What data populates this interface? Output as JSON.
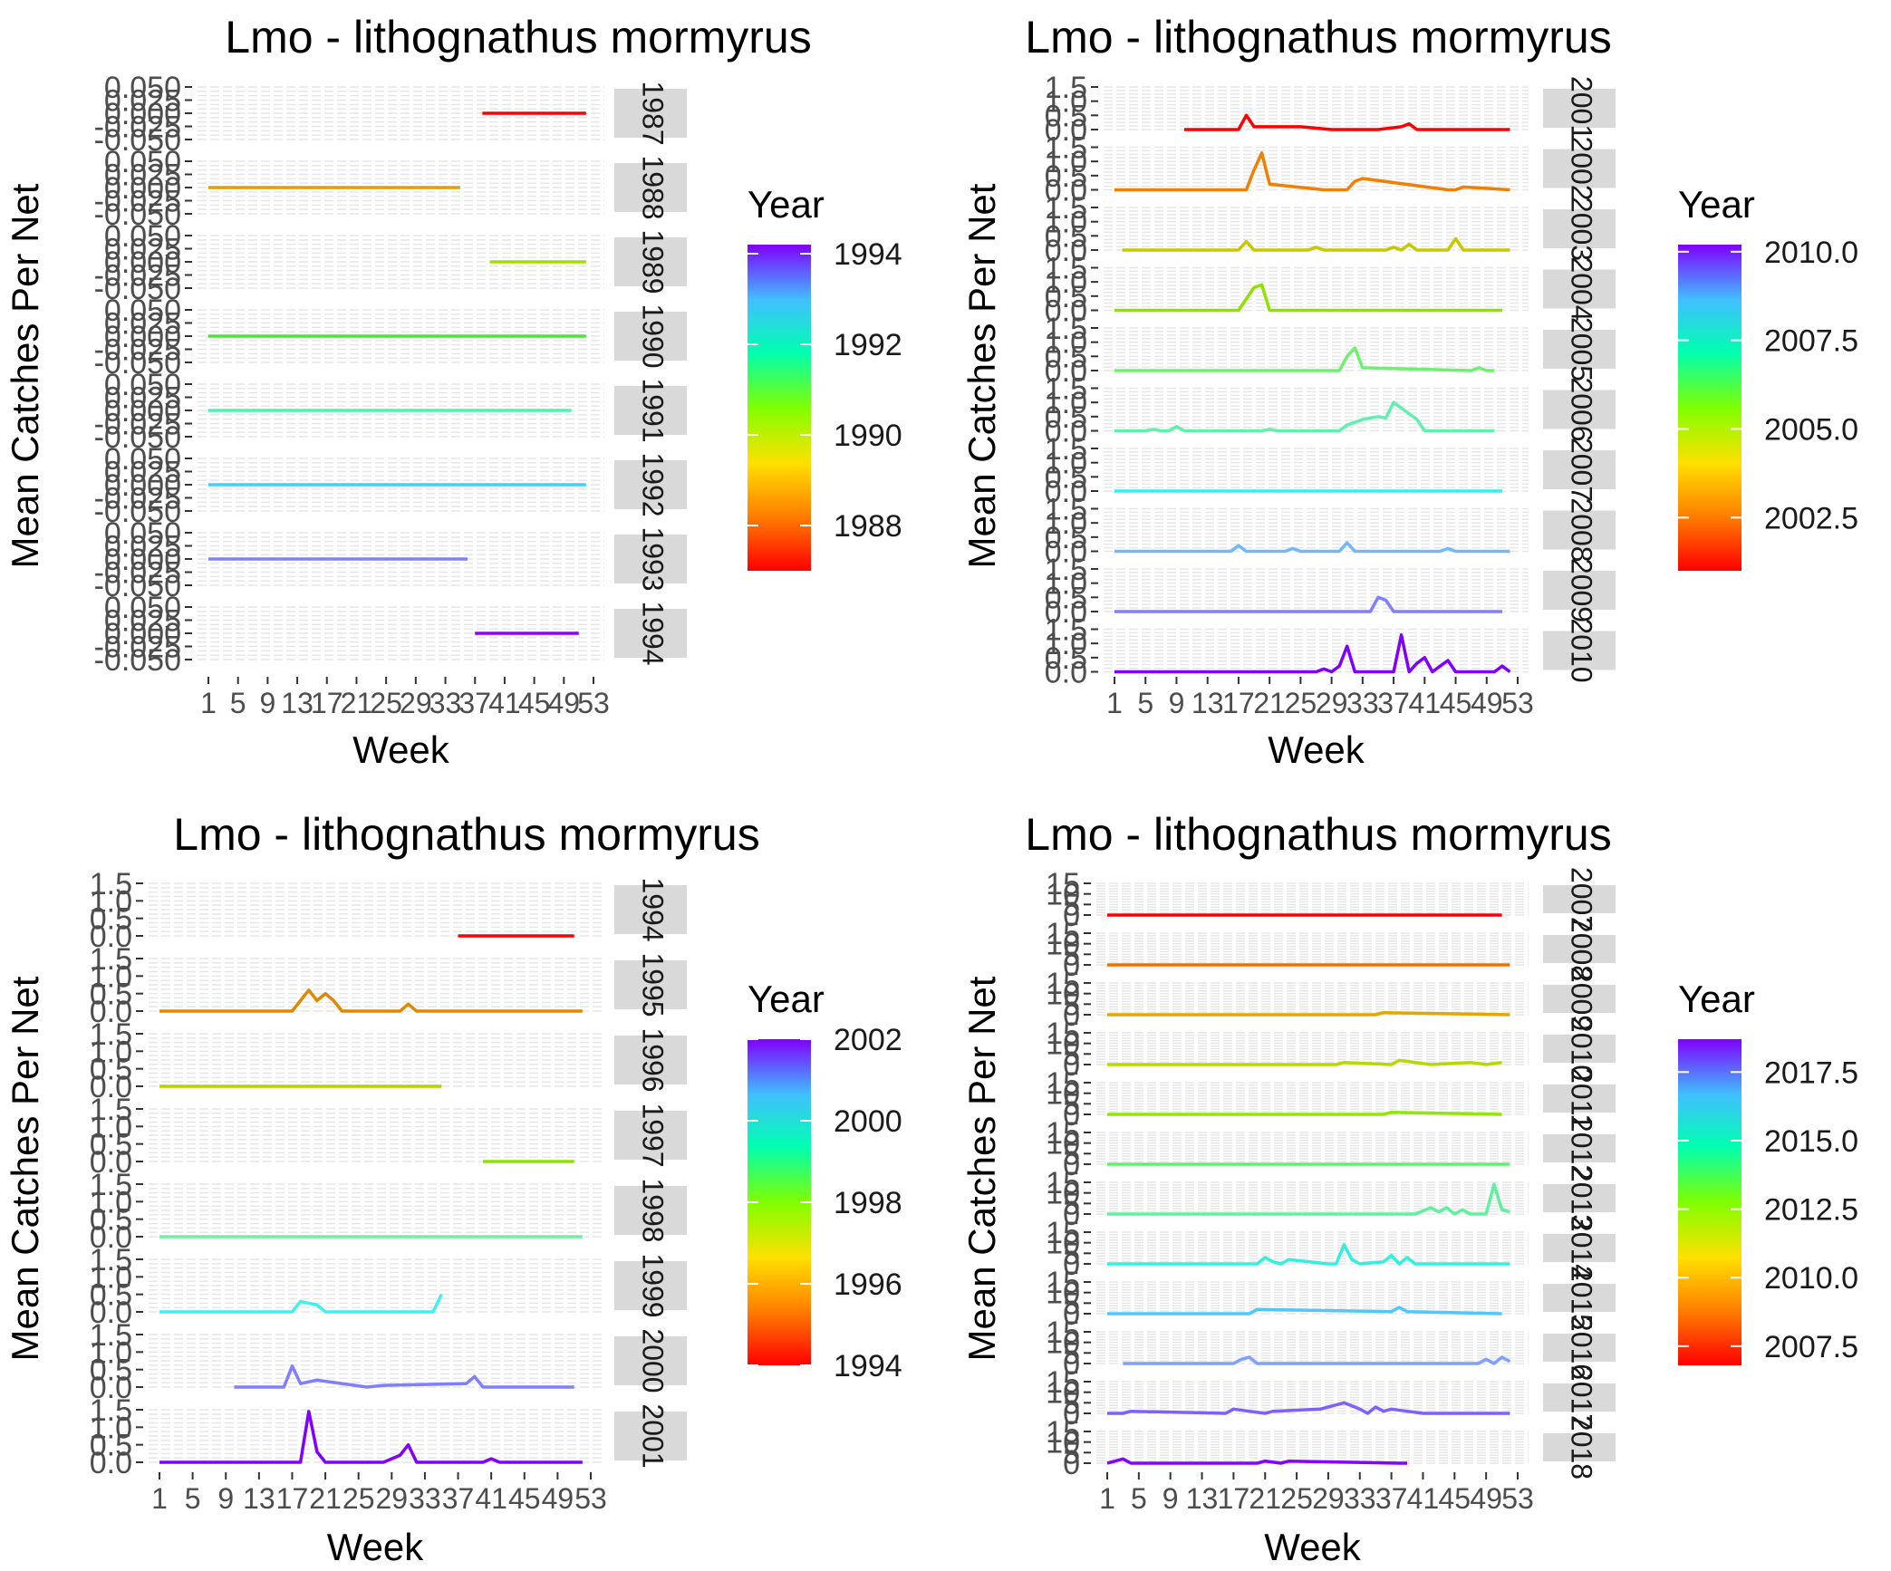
{
  "chart_data": [
    {
      "type": "line",
      "title": "Lmo - lithognathus mormyrus",
      "xlabel": "Week",
      "ylabel": "Mean Catches Per Net",
      "legend": {
        "title": "Year",
        "position": "right",
        "ticks": [
          "1994",
          "1992",
          "1990",
          "1988"
        ],
        "range": [
          1987,
          1994.2
        ]
      },
      "x_ticks": [
        "1",
        "5",
        "9",
        "13",
        "17",
        "21",
        "25",
        "29",
        "33",
        "37",
        "41",
        "45",
        "49",
        "53"
      ],
      "xlim": [
        1,
        53
      ],
      "ylim": [
        -0.05,
        0.05
      ],
      "y_ticks": [
        "-0.050",
        "-0.025",
        "0.000",
        "0.025",
        "0.050"
      ],
      "strips": [
        "1987",
        "1988",
        "1989",
        "1990",
        "1991",
        "1992",
        "1993",
        "1994"
      ],
      "series": [
        {
          "name": "1987",
          "color": "#ff0000",
          "x": [
            38,
            52
          ],
          "y": [
            0,
            0
          ]
        },
        {
          "name": "1988",
          "color": "#e0a000",
          "x": [
            1,
            35
          ],
          "y": [
            0,
            0
          ]
        },
        {
          "name": "1989",
          "color": "#a0e000",
          "x": [
            39,
            52
          ],
          "y": [
            0,
            0
          ]
        },
        {
          "name": "1990",
          "color": "#50e040",
          "x": [
            1,
            52
          ],
          "y": [
            0,
            0
          ]
        },
        {
          "name": "1991",
          "color": "#50f0b0",
          "x": [
            1,
            50
          ],
          "y": [
            0,
            0
          ]
        },
        {
          "name": "1992",
          "color": "#40d0ff",
          "x": [
            1,
            52
          ],
          "y": [
            0,
            0
          ]
        },
        {
          "name": "1993",
          "color": "#8080ff",
          "x": [
            1,
            36
          ],
          "y": [
            0,
            0
          ]
        },
        {
          "name": "1994",
          "color": "#9000ff",
          "x": [
            37,
            51
          ],
          "y": [
            0,
            0
          ]
        }
      ]
    },
    {
      "type": "line",
      "title": "Lmo - lithognathus mormyrus",
      "xlabel": "Week",
      "ylabel": "Mean Catches Per Net",
      "legend": {
        "title": "Year",
        "position": "right",
        "ticks": [
          "2010.0",
          "2007.5",
          "2005.0",
          "2002.5"
        ],
        "range": [
          2001,
          2010.2
        ]
      },
      "x_ticks": [
        "1",
        "5",
        "9",
        "13",
        "17",
        "21",
        "25",
        "29",
        "33",
        "37",
        "41",
        "45",
        "49",
        "53"
      ],
      "xlim": [
        1,
        53
      ],
      "ylim": [
        0,
        1.5
      ],
      "y_ticks": [
        "0.0",
        "0.5",
        "1.0",
        "1.5"
      ],
      "strips": [
        "2001",
        "2002",
        "2003",
        "2004",
        "2005",
        "2006",
        "2007",
        "2008",
        "2009",
        "2010"
      ],
      "series": [
        {
          "name": "2001",
          "color": "#ff0000",
          "x": [
            10,
            17,
            18,
            19,
            25,
            29,
            35,
            38,
            39,
            40,
            45,
            52
          ],
          "y": [
            0,
            0,
            0.5,
            0.1,
            0.1,
            0,
            0,
            0.1,
            0.2,
            0,
            0,
            0
          ]
        },
        {
          "name": "2002",
          "color": "#f08000",
          "x": [
            1,
            18,
            19,
            20,
            21,
            28,
            31,
            32,
            33,
            44,
            45,
            46,
            52
          ],
          "y": [
            0,
            0,
            0.7,
            1.3,
            0.2,
            0,
            0,
            0.3,
            0.4,
            0,
            0,
            0.1,
            0
          ]
        },
        {
          "name": "2003",
          "color": "#c8c800",
          "x": [
            2,
            17,
            18,
            19,
            26,
            27,
            28,
            36,
            37,
            38,
            39,
            40,
            44,
            45,
            46,
            52
          ],
          "y": [
            0,
            0,
            0.3,
            0,
            0,
            0.1,
            0,
            0,
            0.1,
            0,
            0.2,
            0,
            0,
            0.4,
            0,
            0
          ]
        },
        {
          "name": "2004",
          "color": "#90e000",
          "x": [
            1,
            17,
            18,
            19,
            20,
            21,
            51
          ],
          "y": [
            0,
            0,
            0.4,
            0.8,
            0.9,
            0,
            0
          ]
        },
        {
          "name": "2005",
          "color": "#70f070",
          "x": [
            1,
            30,
            31,
            32,
            33,
            47,
            48,
            49,
            50
          ],
          "y": [
            0,
            0,
            0.5,
            0.8,
            0.1,
            0,
            0.1,
            0,
            0
          ]
        },
        {
          "name": "2006",
          "color": "#60f0b0",
          "x": [
            1,
            5,
            6,
            7,
            8,
            9,
            10,
            11,
            12,
            20,
            21,
            22,
            30,
            31,
            33,
            35,
            36,
            37,
            40,
            41,
            45,
            50
          ],
          "y": [
            0,
            0,
            0.05,
            0,
            0,
            0.15,
            0,
            0,
            0,
            0,
            0.05,
            0,
            0,
            0.2,
            0.4,
            0.5,
            0.45,
            1.0,
            0.4,
            0,
            0,
            0
          ]
        },
        {
          "name": "2007",
          "color": "#30f0f0",
          "x": [
            1,
            51
          ],
          "y": [
            0,
            0
          ]
        },
        {
          "name": "2008",
          "color": "#70b8ff",
          "x": [
            1,
            16,
            17,
            18,
            23,
            24,
            25,
            30,
            31,
            32,
            43,
            44,
            45,
            52
          ],
          "y": [
            0,
            0,
            0.2,
            0,
            0,
            0.1,
            0,
            0,
            0.3,
            0,
            0,
            0.1,
            0,
            0
          ]
        },
        {
          "name": "2009",
          "color": "#8080ff",
          "x": [
            1,
            34,
            35,
            36,
            37,
            51
          ],
          "y": [
            0,
            0,
            0.5,
            0.4,
            0,
            0
          ]
        },
        {
          "name": "2010",
          "color": "#8000ff",
          "x": [
            1,
            27,
            28,
            29,
            30,
            31,
            32,
            33,
            35,
            37,
            38,
            39,
            40,
            41,
            42,
            43,
            44,
            45,
            46,
            47,
            48,
            49,
            50,
            51,
            52
          ],
          "y": [
            0,
            0,
            0.1,
            0,
            0.2,
            0.9,
            0,
            0,
            0,
            0,
            1.3,
            0,
            0.3,
            0.5,
            0,
            0.2,
            0.4,
            0,
            0,
            0,
            0,
            0,
            0,
            0.2,
            0
          ]
        }
      ]
    },
    {
      "type": "line",
      "title": "Lmo - lithognathus mormyrus",
      "xlabel": "Week",
      "ylabel": "Mean Catches Per Net",
      "legend": {
        "title": "Year",
        "position": "right",
        "ticks": [
          "2002",
          "2000",
          "1998",
          "1996",
          "1994"
        ],
        "range": [
          1994,
          2002
        ]
      },
      "x_ticks": [
        "1",
        "5",
        "9",
        "13",
        "17",
        "21",
        "25",
        "29",
        "33",
        "37",
        "41",
        "45",
        "49",
        "53"
      ],
      "xlim": [
        1,
        53
      ],
      "ylim": [
        0,
        1.5
      ],
      "y_ticks": [
        "0.0",
        "0.5",
        "1.0",
        "1.5"
      ],
      "strips": [
        "1994",
        "1995",
        "1996",
        "1997",
        "1998",
        "1999",
        "2000",
        "2001"
      ],
      "series": [
        {
          "name": "1994",
          "color": "#ff0000",
          "x": [
            37,
            51
          ],
          "y": [
            0,
            0
          ]
        },
        {
          "name": "1995",
          "color": "#e08800",
          "x": [
            1,
            17,
            18,
            19,
            20,
            21,
            22,
            23,
            30,
            31,
            32,
            52
          ],
          "y": [
            0,
            0,
            0.3,
            0.6,
            0.3,
            0.5,
            0.3,
            0,
            0,
            0.2,
            0,
            0
          ]
        },
        {
          "name": "1996",
          "color": "#b8d000",
          "x": [
            1,
            35
          ],
          "y": [
            0,
            0
          ]
        },
        {
          "name": "1997",
          "color": "#90e000",
          "x": [
            40,
            51
          ],
          "y": [
            0,
            0
          ]
        },
        {
          "name": "1998",
          "color": "#70f0a0",
          "x": [
            1,
            52
          ],
          "y": [
            0,
            0
          ]
        },
        {
          "name": "1999",
          "color": "#40f0f0",
          "x": [
            1,
            17,
            18,
            20,
            21,
            34,
            35
          ],
          "y": [
            0,
            0,
            0.3,
            0.2,
            0,
            0,
            0.5
          ]
        },
        {
          "name": "2000",
          "color": "#7f7fff",
          "x": [
            10,
            16,
            17,
            18,
            20,
            26,
            28,
            38,
            39,
            40,
            51
          ],
          "y": [
            0,
            0,
            0.6,
            0.1,
            0.2,
            0,
            0.05,
            0.1,
            0.3,
            0,
            0
          ]
        },
        {
          "name": "2001",
          "color": "#8000ff",
          "x": [
            1,
            18,
            19,
            20,
            21,
            28,
            30,
            31,
            32,
            40,
            41,
            42,
            52
          ],
          "y": [
            0,
            0,
            1.45,
            0.3,
            0,
            0,
            0.2,
            0.5,
            0,
            0,
            0.1,
            0,
            0
          ]
        }
      ]
    },
    {
      "type": "line",
      "title": "Lmo - lithognathus mormyrus",
      "xlabel": "Week",
      "ylabel": "Mean Catches Per Net",
      "legend": {
        "title": "Year",
        "position": "right",
        "ticks": [
          "2017.5",
          "2015.0",
          "2012.5",
          "2010.0",
          "2007.5"
        ],
        "range": [
          2006.8,
          2018.7
        ]
      },
      "x_ticks": [
        "1",
        "5",
        "9",
        "13",
        "17",
        "21",
        "25",
        "29",
        "33",
        "37",
        "41",
        "45",
        "49",
        "53"
      ],
      "xlim": [
        1,
        53
      ],
      "ylim": [
        0,
        15
      ],
      "y_ticks": [
        "0",
        "5",
        "10",
        "15"
      ],
      "strips": [
        "2007",
        "2008",
        "2009",
        "2010",
        "2011",
        "2012",
        "2013",
        "2014",
        "2015",
        "2016",
        "2017",
        "2018"
      ],
      "series": [
        {
          "name": "2007",
          "color": "#ff0000",
          "x": [
            1,
            51
          ],
          "y": [
            0,
            0
          ]
        },
        {
          "name": "2008",
          "color": "#f07000",
          "x": [
            1,
            52
          ],
          "y": [
            0,
            0
          ]
        },
        {
          "name": "2009",
          "color": "#e0a800",
          "x": [
            1,
            35,
            36,
            52
          ],
          "y": [
            0,
            0,
            1,
            0
          ]
        },
        {
          "name": "2010",
          "color": "#b8d800",
          "x": [
            1,
            30,
            31,
            37,
            38,
            40,
            42,
            47,
            49,
            51
          ],
          "y": [
            0,
            0,
            1,
            0,
            2,
            1,
            0,
            1,
            0,
            1
          ]
        },
        {
          "name": "2011",
          "color": "#90e800",
          "x": [
            1,
            36,
            37,
            51
          ],
          "y": [
            0,
            0,
            1,
            0
          ]
        },
        {
          "name": "2012",
          "color": "#60f070",
          "x": [
            1,
            52
          ],
          "y": [
            0,
            0
          ]
        },
        {
          "name": "2013",
          "color": "#60f0a0",
          "x": [
            1,
            40,
            42,
            43,
            44,
            45,
            46,
            47,
            48,
            49,
            50,
            51,
            52
          ],
          "y": [
            0,
            0,
            3,
            1,
            3,
            0,
            2,
            0,
            0,
            0,
            14,
            2,
            1
          ]
        },
        {
          "name": "2014",
          "color": "#30f0e0",
          "x": [
            1,
            20,
            21,
            22,
            23,
            24,
            29,
            30,
            31,
            32,
            33,
            36,
            37,
            38,
            39,
            40,
            41,
            52
          ],
          "y": [
            0,
            0,
            3,
            1,
            0,
            2,
            0,
            0,
            9,
            2,
            0,
            1,
            4,
            0,
            3,
            0,
            0,
            0
          ]
        },
        {
          "name": "2015",
          "color": "#50c8ff",
          "x": [
            1,
            19,
            20,
            37,
            38,
            39,
            51
          ],
          "y": [
            0,
            0,
            2,
            1,
            3,
            1,
            0
          ]
        },
        {
          "name": "2016",
          "color": "#7fa0ff",
          "x": [
            3,
            17,
            18,
            19,
            20,
            48,
            49,
            50,
            51,
            52
          ],
          "y": [
            0,
            0,
            2,
            3,
            0,
            0,
            2,
            0,
            3,
            1
          ]
        },
        {
          "name": "2017",
          "color": "#7f60ff",
          "x": [
            1,
            3,
            4,
            16,
            17,
            21,
            22,
            28,
            29,
            30,
            31,
            33,
            34,
            35,
            36,
            37,
            41,
            46,
            52
          ],
          "y": [
            0,
            0,
            1,
            0,
            2,
            0,
            1,
            2,
            3,
            4,
            5,
            2,
            0,
            3,
            1,
            2,
            0,
            0,
            0
          ]
        },
        {
          "name": "2018",
          "color": "#8800ff",
          "x": [
            1,
            2,
            3,
            4,
            20,
            21,
            23,
            24,
            38,
            39
          ],
          "y": [
            0,
            1,
            2,
            0,
            0,
            1,
            0,
            1,
            0,
            0
          ]
        }
      ]
    }
  ]
}
